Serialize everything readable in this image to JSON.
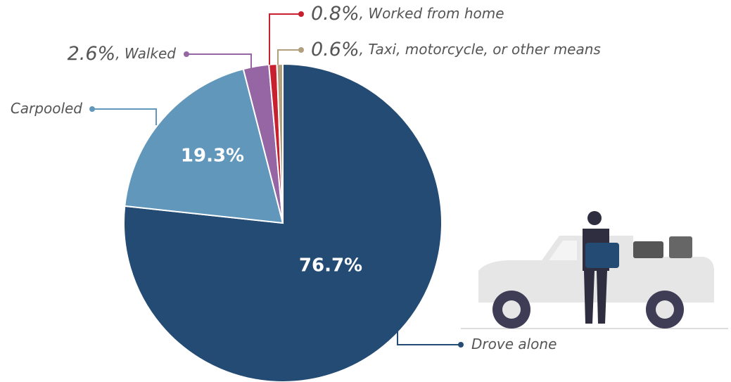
{
  "chart_data": {
    "type": "pie",
    "categories": [
      "Drove alone",
      "Carpooled",
      "Walked",
      "Worked from home",
      "Taxi, motorcycle, or other means"
    ],
    "values": [
      76.7,
      19.3,
      2.6,
      0.8,
      0.6
    ],
    "value_labels": [
      "76.7%",
      "19.3%",
      "2.6%",
      "0.8%",
      "0.6%"
    ],
    "colors": [
      "#234b73",
      "#6097bb",
      "#9566a3",
      "#c8202f",
      "#b29f7e"
    ],
    "label_separator": ", "
  }
}
